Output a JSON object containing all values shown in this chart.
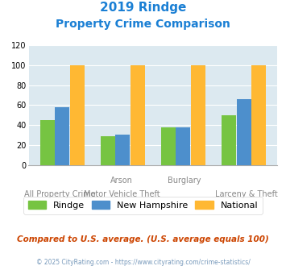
{
  "title_line1": "2019 Rindge",
  "title_line2": "Property Crime Comparison",
  "rindge": [
    45,
    29,
    38,
    50
  ],
  "new_hampshire": [
    58,
    30,
    38,
    66
  ],
  "national": [
    100,
    100,
    100,
    100
  ],
  "bar_colors": {
    "rindge": "#76c442",
    "new_hampshire": "#4d8fcc",
    "national": "#ffb833"
  },
  "ylim": [
    0,
    120
  ],
  "yticks": [
    0,
    20,
    40,
    60,
    80,
    100,
    120
  ],
  "legend_labels": [
    "Rindge",
    "New Hampshire",
    "National"
  ],
  "note": "Compared to U.S. average. (U.S. average equals 100)",
  "footer": "© 2025 CityRating.com - https://www.cityrating.com/crime-statistics/",
  "title_color": "#1a7fd4",
  "note_color": "#cc4400",
  "footer_color": "#7799bb",
  "plot_bg": "#dce9f0",
  "top_xlabels": [
    "",
    "Arson",
    "Burglary",
    ""
  ],
  "bot_xlabels": [
    "All Property Crime",
    "Motor Vehicle Theft",
    "",
    "Larceny & Theft"
  ]
}
